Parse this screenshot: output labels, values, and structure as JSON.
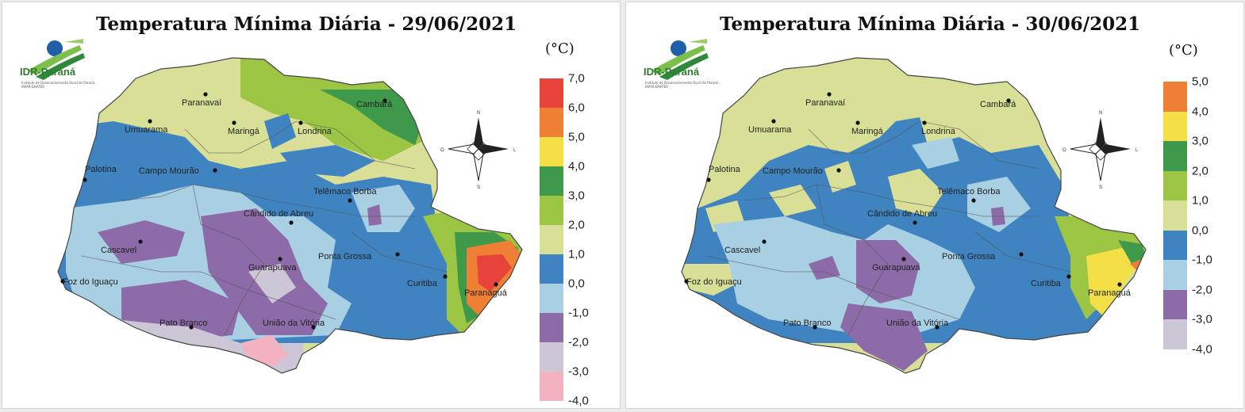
{
  "maps": [
    {
      "title": "Temperatura Mínima Diária - 29/06/2021",
      "unit": "(°C)",
      "legend": [
        {
          "label": "7,0",
          "color": "#e8433b"
        },
        {
          "label": "6,0",
          "color": "#ee7f35"
        },
        {
          "label": "5,0",
          "color": "#f5df47"
        },
        {
          "label": "4,0",
          "color": "#3e9a4a"
        },
        {
          "label": "3,0",
          "color": "#9cc543"
        },
        {
          "label": "2,0",
          "color": "#dadf97"
        },
        {
          "label": "1,0",
          "color": "#3f84c0"
        },
        {
          "label": "0,0",
          "color": "#a9cfe3"
        },
        {
          "label": "-1,0",
          "color": "#8c6ba8"
        },
        {
          "label": "-2,0",
          "color": "#ccc6d6"
        },
        {
          "label": "-3,0",
          "color": "#f2b2bf"
        },
        {
          "label": "-4,0",
          "color": null
        }
      ]
    },
    {
      "title": "Temperatura Mínima Diária - 30/06/2021",
      "unit": "(°C)",
      "legend": [
        {
          "label": "5,0",
          "color": "#ee7f35"
        },
        {
          "label": "4,0",
          "color": "#f5df47"
        },
        {
          "label": "3,0",
          "color": "#3e9a4a"
        },
        {
          "label": "2,0",
          "color": "#9cc543"
        },
        {
          "label": "1,0",
          "color": "#dadf97"
        },
        {
          "label": "0,0",
          "color": "#3f84c0"
        },
        {
          "label": "-1,0",
          "color": "#a9cfe3"
        },
        {
          "label": "-2,0",
          "color": "#8c6ba8"
        },
        {
          "label": "-3,0",
          "color": "#ccc6d6"
        },
        {
          "label": "-4,0",
          "color": null
        }
      ]
    }
  ],
  "logo": {
    "name": "IDR-Paraná",
    "subtitle": "Instituto de Desenvolvimento Rural do Paraná - IAPAR-EMATER"
  },
  "cities": [
    {
      "name": "Paranavaí"
    },
    {
      "name": "Umuarama"
    },
    {
      "name": "Maringá"
    },
    {
      "name": "Londrina"
    },
    {
      "name": "Cambará"
    },
    {
      "name": "Campo Mourão"
    },
    {
      "name": "Palotina"
    },
    {
      "name": "Telêmaco Borba"
    },
    {
      "name": "Cândido de Abreu"
    },
    {
      "name": "Cascavel"
    },
    {
      "name": "Guarapuava"
    },
    {
      "name": "Ponta Grossa"
    },
    {
      "name": "Foz do Iguaçu"
    },
    {
      "name": "Curitiba"
    },
    {
      "name": "Paranaguá"
    },
    {
      "name": "Pato Branco"
    },
    {
      "name": "União da Vitória"
    }
  ],
  "compass": {
    "n": "N",
    "s": "S",
    "e": "L",
    "w": "O"
  }
}
